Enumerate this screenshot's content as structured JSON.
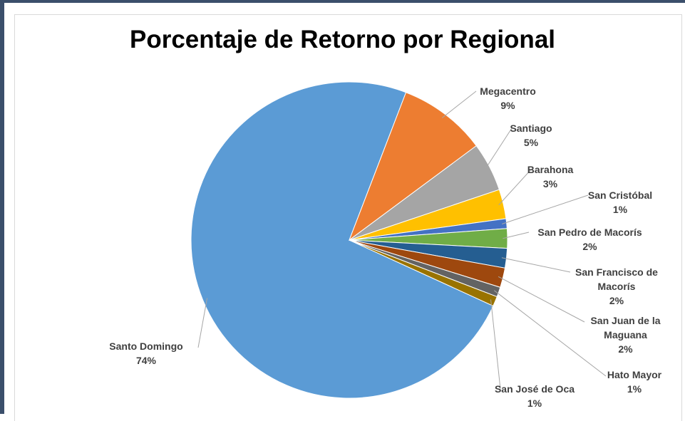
{
  "chart_data": {
    "type": "pie",
    "title": "Porcentaje de Retorno por Regional",
    "categories": [
      "Santo Domingo",
      "Megacentro",
      "Santiago",
      "Barahona",
      "San Cristóbal",
      "San Pedro de Macorís",
      "San Francisco de Macorís",
      "San Juan de la Maguana",
      "Hato Mayor",
      "San José de Oca"
    ],
    "values": [
      74,
      9,
      5,
      3,
      1,
      2,
      2,
      2,
      1,
      1
    ],
    "value_labels": [
      "74%",
      "9%",
      "5%",
      "3%",
      "1%",
      "2%",
      "2%",
      "2%",
      "1%",
      "1%"
    ],
    "colors": [
      "#5b9bd5",
      "#ed7d31",
      "#a5a5a5",
      "#ffc000",
      "#4472c4",
      "#70ad47",
      "#255e91",
      "#9e480e",
      "#636363",
      "#997300"
    ]
  }
}
